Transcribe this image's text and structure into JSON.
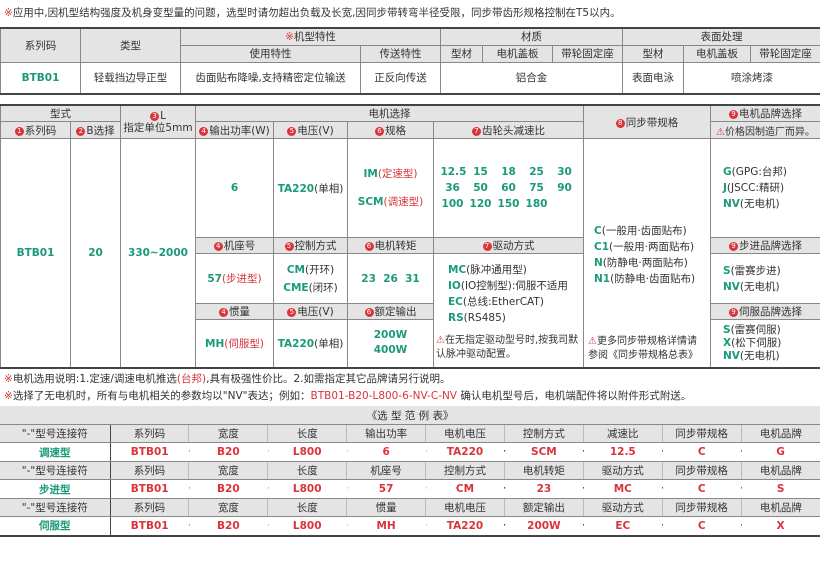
{
  "top_note": {
    "mark": "※",
    "text": "应用中,因机型结构强度及机身变型量的问题，选型时请勿超出负载及长宽,因同步带转弯半径受限，同步带齿形规格控制在T5以内。"
  },
  "t1": {
    "headers": {
      "series": "系列码",
      "type": "类型",
      "feature_mark": "※",
      "feature": "机型特性",
      "material": "材质",
      "surface": "表面处理",
      "use": "使用特性",
      "transfer": "传送特性",
      "profile": "型材",
      "motor_cover": "电机盖板",
      "pulley": "带轮固定座",
      "profile2": "型材",
      "motor_cover2": "电机盖板",
      "pulley2": "带轮固定座"
    },
    "row": {
      "series": "BTB01",
      "type": "轻载挡边导正型",
      "use": "齿面贴布降噪,支持精密定位输送",
      "transfer": "正反向传送",
      "material": "铝合金",
      "surface_profile": "表面电泳",
      "surface_other": "喷涂烤漆"
    }
  },
  "t2": {
    "h": {
      "model": "型式",
      "series": "系列码",
      "b": "B选择",
      "l": "L",
      "l_unit": "指定单位5mm",
      "motor": "电机选择",
      "power": "输出功率(W)",
      "voltage": "电压(V)",
      "spec": "规格",
      "gear": "齿轮头减速比",
      "sync": "同步带规格",
      "brand": "电机品牌选择",
      "brand_note": "价格因制造厂而异。",
      "frame": "机座号",
      "control": "控制方式",
      "torque": "电机转矩",
      "drive": "驱动方式",
      "step_brand": "步进品牌选择",
      "inertia": "惯量",
      "voltage2": "电压(V)",
      "rated": "额定输出",
      "servo_brand": "伺服品牌选择"
    },
    "nums": {
      "n1": "1",
      "n2": "2",
      "n3": "3",
      "n4": "4",
      "n5": "5",
      "n6": "6",
      "n7": "7",
      "n8": "8",
      "n9": "9"
    },
    "series": "BTB01",
    "b": "20",
    "l": "330~2000",
    "power": "6",
    "voltage": "TA220",
    "voltage_sfx": "(单相)",
    "spec": [
      {
        "code": "IM",
        "desc": "(定速型)"
      },
      {
        "code": "SCM",
        "desc": "(调速型)"
      }
    ],
    "gear_ratios": [
      [
        "12.5",
        "15",
        "18",
        "25",
        "30"
      ],
      [
        "36",
        "50",
        "60",
        "75",
        "90"
      ],
      [
        "100",
        "120",
        "150",
        "180",
        ""
      ]
    ],
    "frame": "57",
    "frame_sfx": "(步进型)",
    "control": [
      {
        "code": "CM",
        "desc": "(开环)"
      },
      {
        "code": "CME",
        "desc": "(闭环)"
      }
    ],
    "torque": "23  26  31",
    "drive": [
      {
        "code": "MC",
        "desc": "(脉冲通用型)"
      },
      {
        "code": "IO",
        "desc": "(IO控制型):伺服不适用"
      },
      {
        "code": "EC",
        "desc": "(总线:EtherCAT)"
      },
      {
        "code": "RS",
        "desc": "(RS485)"
      }
    ],
    "drive_note": "在无指定驱动型号时,按我司默认脉冲驱动配置。",
    "inertia": "MH",
    "inertia_sfx": "(伺服型)",
    "voltage2": "TA220",
    "voltage2_sfx": "(单相)",
    "rated": [
      "200W",
      "400W"
    ],
    "sync": [
      {
        "code": "C",
        "desc": "(一般用·齿面贴布)"
      },
      {
        "code": "C1",
        "desc": "(一般用·两面贴布)"
      },
      {
        "code": "N",
        "desc": "(防静电·两面贴布)"
      },
      {
        "code": "N1",
        "desc": "(防静电·齿面贴布)"
      }
    ],
    "sync_note": "更多同步带规格详情请参阅《同步带规格总表》",
    "brands": [
      {
        "code": "G",
        "desc": "(GPG:台邦)"
      },
      {
        "code": "J",
        "desc": "(JSCC:精研)"
      },
      {
        "code": "NV",
        "desc": "(无电机)"
      }
    ],
    "step_brands": [
      {
        "code": "S",
        "desc": "(雷赛步进)"
      },
      {
        "code": "NV",
        "desc": "(无电机)"
      }
    ],
    "servo_brands": [
      {
        "code": "S",
        "desc": "(雷赛伺服)"
      },
      {
        "code": "X",
        "desc": "(松下伺服)"
      },
      {
        "code": "NV",
        "desc": "(无电机)"
      }
    ]
  },
  "notes": {
    "n1_mark": "※",
    "n1_a": "电机选用说明:1.定速/调速电机推选",
    "n1_red": "(台邦)",
    "n1_b": ",具有极强性价比。2.如需指定其它品牌请另行说明。",
    "n2_mark": "※",
    "n2_a": "选择了无电机时，所有与电机相关的参数均以\"NV\"表达；例如：",
    "n2_red": "BTB01-B20-L800-6-NV-C-NV",
    "n2_b": "  确认电机型号后，电机端配件将以附件形式附送。"
  },
  "examples": {
    "title": "《选 型 范 例 表》",
    "blocks": [
      {
        "headers": [
          "\"-\"型号连接符",
          "系列码",
          "宽度",
          "长度",
          "输出功率",
          "电机电压",
          "控制方式",
          "减速比",
          "同步带规格",
          "电机品牌"
        ],
        "values": [
          "调速型",
          "BTB01",
          "B20",
          "L800",
          "6",
          "TA220",
          "SCM",
          "12.5",
          "C",
          "G"
        ]
      },
      {
        "headers": [
          "\"-\"型号连接符",
          "系列码",
          "宽度",
          "长度",
          "机座号",
          "控制方式",
          "电机转矩",
          "驱动方式",
          "同步带规格",
          "电机品牌"
        ],
        "values": [
          "步进型",
          "BTB01",
          "B20",
          "L800",
          "57",
          "CM",
          "23",
          "MC",
          "C",
          "S"
        ]
      },
      {
        "headers": [
          "\"-\"型号连接符",
          "系列码",
          "宽度",
          "长度",
          "惯量",
          "电机电压",
          "额定输出",
          "驱动方式",
          "同步带规格",
          "电机品牌"
        ],
        "values": [
          "伺服型",
          "BTB01",
          "B20",
          "L800",
          "MH",
          "TA220",
          "200W",
          "EC",
          "C",
          "X"
        ]
      }
    ],
    "dash": "–"
  },
  "colors": {
    "accent_green": "#1a9a7a",
    "accent_red": "#d9343a",
    "header_bg": "#e4e4e4"
  }
}
